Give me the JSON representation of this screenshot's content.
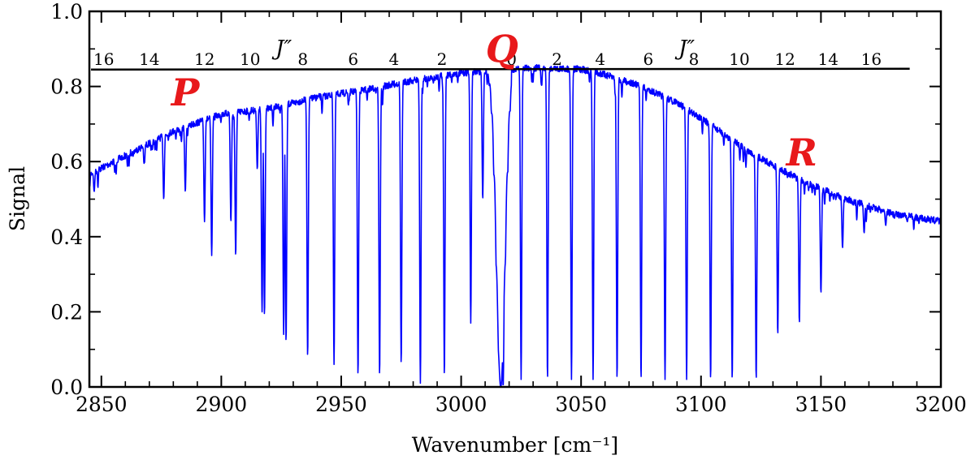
{
  "chart_data": {
    "type": "line",
    "title": "",
    "xlabel": "Wavenumber [cm⁻¹]",
    "ylabel": "Signal",
    "xlim": [
      2845,
      3200
    ],
    "ylim": [
      0.0,
      1.0
    ],
    "x_ticks": [
      2850,
      2900,
      2950,
      3000,
      3050,
      3100,
      3150,
      3200
    ],
    "x_tick_labels": [
      "2850",
      "2900",
      "2950",
      "3000",
      "3050",
      "3100",
      "3150",
      "3200"
    ],
    "y_ticks": [
      0.0,
      0.2,
      0.4,
      0.6,
      0.8,
      1.0
    ],
    "y_tick_labels": [
      "0.0",
      "0.2",
      "0.4",
      "0.6",
      "0.8",
      "1.0"
    ],
    "grid": false,
    "line_color": "#0000ff",
    "q_branch_center": 3018,
    "q_branch_min": 0.0,
    "series": [
      {
        "envelope": [
          [
            2845,
            0.575
          ],
          [
            2860,
            0.625
          ],
          [
            2880,
            0.69
          ],
          [
            2900,
            0.735
          ],
          [
            2920,
            0.75
          ],
          [
            2940,
            0.78
          ],
          [
            2960,
            0.8
          ],
          [
            2980,
            0.825
          ],
          [
            3000,
            0.845
          ],
          [
            3010,
            0.85
          ],
          [
            3030,
            0.858
          ],
          [
            3050,
            0.855
          ],
          [
            3060,
            0.84
          ],
          [
            3075,
            0.81
          ],
          [
            3090,
            0.765
          ],
          [
            3100,
            0.725
          ],
          [
            3110,
            0.68
          ],
          [
            3120,
            0.635
          ],
          [
            3140,
            0.565
          ],
          [
            3160,
            0.51
          ],
          [
            3180,
            0.47
          ],
          [
            3200,
            0.45
          ]
        ],
        "absorption_lines": [
          [
            2847,
            0.52
          ],
          [
            2876,
            0.5
          ],
          [
            2885,
            0.52
          ],
          [
            2893,
            0.44
          ],
          [
            2896,
            0.35
          ],
          [
            2904,
            0.44
          ],
          [
            2906,
            0.35
          ],
          [
            2915,
            0.58
          ],
          [
            2917,
            0.2
          ],
          [
            2918,
            0.19
          ],
          [
            2926,
            0.14
          ],
          [
            2927,
            0.12
          ],
          [
            2936,
            0.08
          ],
          [
            2947,
            0.06
          ],
          [
            2957,
            0.03
          ],
          [
            2966,
            0.03
          ],
          [
            2975,
            0.06
          ],
          [
            2983,
            0.01
          ],
          [
            2993,
            0.03
          ],
          [
            3004,
            0.17
          ],
          [
            3009,
            0.5
          ],
          [
            3025,
            0.02
          ],
          [
            3036,
            0.02
          ],
          [
            3046,
            0.02
          ],
          [
            3055,
            0.02
          ],
          [
            3065,
            0.02
          ],
          [
            3075,
            0.02
          ],
          [
            3085,
            0.02
          ],
          [
            3094,
            0.02
          ],
          [
            3104,
            0.02
          ],
          [
            3113,
            0.02
          ],
          [
            3123,
            0.02
          ],
          [
            3132,
            0.14
          ],
          [
            3141,
            0.17
          ],
          [
            3150,
            0.25
          ],
          [
            3159,
            0.37
          ],
          [
            3168,
            0.41
          ],
          [
            3177,
            0.43
          ],
          [
            3186,
            0.44
          ]
        ]
      }
    ],
    "top_axis": {
      "title": "J″",
      "p_branch_labels": [
        "16",
        "14",
        "12",
        "10",
        "8",
        "6",
        "4",
        "2"
      ],
      "r_branch_labels": [
        "0",
        "2",
        "4",
        "6",
        "8",
        "10",
        "12",
        "14",
        "16"
      ],
      "p_label_x": [
        2851,
        2870,
        2893,
        2912,
        2934,
        2955,
        2972,
        2992
      ],
      "r_label_x": [
        3021,
        3040,
        3058,
        3078,
        3097,
        3116,
        3135,
        3153,
        3171
      ],
      "p_title_x": 2926,
      "r_title_x": 3094,
      "baseline_y": 0.845
    },
    "annotations": [
      {
        "text": "P",
        "x": 2885,
        "y": 0.75
      },
      {
        "text": "Q",
        "x": 3017,
        "y": 0.865
      },
      {
        "text": "R",
        "x": 3142,
        "y": 0.59
      }
    ]
  }
}
